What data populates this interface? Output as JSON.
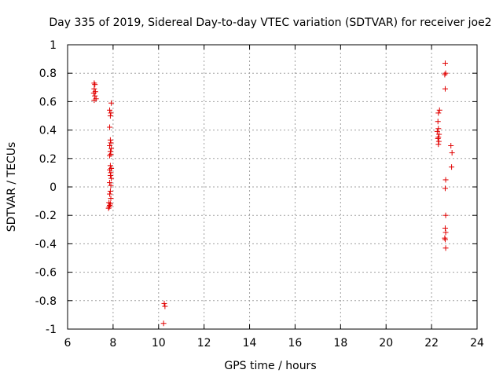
{
  "chart_data": {
    "type": "scatter",
    "title": "Day 335 of 2019, Sidereal Day-to-day VTEC variation (SDTVAR) for receiver joe2",
    "xlabel": "GPS time / hours",
    "ylabel": "SDTVAR / TECUs",
    "xlim": [
      6,
      24
    ],
    "ylim": [
      -1,
      1
    ],
    "xticks": [
      6,
      8,
      10,
      12,
      14,
      16,
      18,
      20,
      22,
      24
    ],
    "yticks": [
      -1,
      -0.8,
      -0.6,
      -0.4,
      -0.2,
      0,
      0.2,
      0.4,
      0.6,
      0.8,
      1
    ],
    "grid": true,
    "marker": "+",
    "color": "#e00000",
    "series": [
      {
        "points": [
          [
            7.17,
            0.73
          ],
          [
            7.2,
            0.72
          ],
          [
            7.17,
            0.69
          ],
          [
            7.22,
            0.67
          ],
          [
            7.15,
            0.66
          ],
          [
            7.2,
            0.64
          ],
          [
            7.25,
            0.62
          ],
          [
            7.17,
            0.61
          ],
          [
            7.92,
            0.59
          ],
          [
            7.85,
            0.54
          ],
          [
            7.9,
            0.52
          ],
          [
            7.88,
            0.5
          ],
          [
            7.85,
            0.42
          ],
          [
            7.88,
            0.33
          ],
          [
            7.9,
            0.31
          ],
          [
            7.85,
            0.29
          ],
          [
            7.92,
            0.27
          ],
          [
            7.88,
            0.25
          ],
          [
            7.9,
            0.23
          ],
          [
            7.85,
            0.22
          ],
          [
            7.88,
            0.15
          ],
          [
            7.92,
            0.13
          ],
          [
            7.85,
            0.12
          ],
          [
            7.9,
            0.1
          ],
          [
            7.88,
            0.08
          ],
          [
            7.92,
            0.06
          ],
          [
            7.85,
            0.03
          ],
          [
            7.9,
            0.01
          ],
          [
            7.88,
            -0.03
          ],
          [
            7.85,
            -0.05
          ],
          [
            7.9,
            -0.08
          ],
          [
            7.82,
            -0.11
          ],
          [
            7.88,
            -0.12
          ],
          [
            7.85,
            -0.13
          ],
          [
            7.8,
            -0.15
          ],
          [
            7.83,
            -0.14
          ],
          [
            10.25,
            -0.82
          ],
          [
            10.28,
            -0.84
          ],
          [
            10.22,
            -0.96
          ],
          [
            22.6,
            0.87
          ],
          [
            22.62,
            0.8
          ],
          [
            22.58,
            0.79
          ],
          [
            22.6,
            0.69
          ],
          [
            22.35,
            0.54
          ],
          [
            22.3,
            0.52
          ],
          [
            22.28,
            0.46
          ],
          [
            22.3,
            0.41
          ],
          [
            22.25,
            0.39
          ],
          [
            22.33,
            0.37
          ],
          [
            22.3,
            0.35
          ],
          [
            22.28,
            0.34
          ],
          [
            22.32,
            0.32
          ],
          [
            22.3,
            0.3
          ],
          [
            22.85,
            0.29
          ],
          [
            22.9,
            0.24
          ],
          [
            22.88,
            0.14
          ],
          [
            22.62,
            0.05
          ],
          [
            22.6,
            -0.01
          ],
          [
            22.62,
            -0.2
          ],
          [
            22.6,
            -0.29
          ],
          [
            22.62,
            -0.32
          ],
          [
            22.58,
            -0.36
          ],
          [
            22.6,
            -0.37
          ],
          [
            22.62,
            -0.43
          ]
        ]
      }
    ]
  }
}
